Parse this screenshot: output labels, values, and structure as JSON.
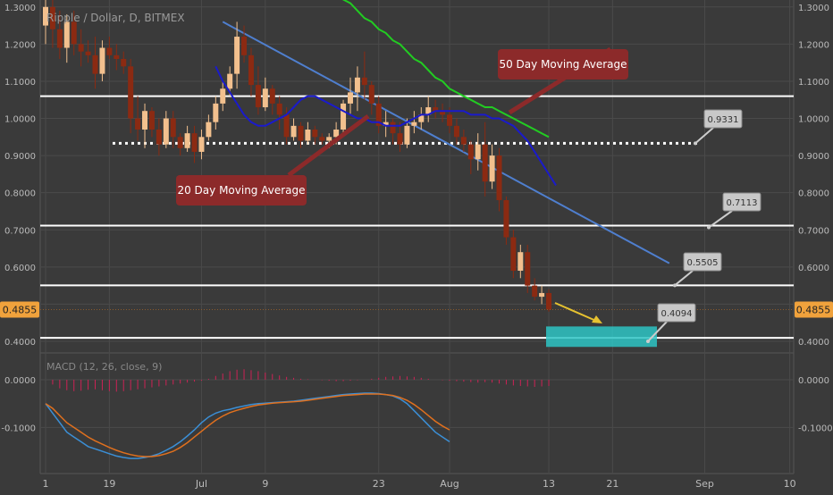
{
  "header": {
    "title": "Ripple / Dollar, D, BITMEX"
  },
  "colors": {
    "background": "#3a3a3a",
    "grid": "#4a4a4a",
    "candle_up": "#f2c08e",
    "candle_down": "#8b2a12",
    "ma20": "#1a1acc",
    "ma50": "#22cc22",
    "trendline": "#4f7fcf",
    "level_line": "#ffffff",
    "support_line": "#dddddd",
    "target_box": "#2ec4c4",
    "arrow": "#e6c230",
    "annotation_bg": "#8c2a2a",
    "callout_bg": "#c8c8c8",
    "price_tag_bg": "#f0a23c",
    "macd_line": "#3b8fd6",
    "signal_line": "#e0701e",
    "histogram": "#cc2255",
    "axis_text": "#bbbbbb"
  },
  "annotations": {
    "ma20_label": "20 Day Moving Average",
    "ma50_label": "50 Day Moving Average"
  },
  "price_tag": "0.4855",
  "chart_data": [
    {
      "type": "candlestick",
      "title": "Ripple / Dollar, D, BITMEX",
      "x_tick_labels": [
        "1",
        "19",
        "Jul",
        "9",
        "23",
        "Aug",
        "13",
        "21",
        "Sep",
        "10"
      ],
      "y_tick_labels": [
        "0.4000",
        "0.5000",
        "0.6000",
        "0.7000",
        "0.8000",
        "0.9000",
        "1.0000",
        "1.1000",
        "1.2000",
        "1.3000"
      ],
      "ylim": [
        0.37,
        1.33
      ],
      "grid": true,
      "last_price": 0.4855,
      "horizontal_levels": [
        {
          "value": 1.06,
          "style": "solid"
        },
        {
          "value": 0.9331,
          "style": "dotted",
          "label": "0.9331"
        },
        {
          "value": 0.7113,
          "style": "solid",
          "label": "0.7113"
        },
        {
          "value": 0.5505,
          "style": "solid",
          "label": "0.5505"
        },
        {
          "value": 0.4094,
          "style": "solid",
          "label": "0.4094"
        }
      ],
      "target_zone": {
        "low": 0.385,
        "high": 0.44
      },
      "candles": [
        {
          "o": 1.25,
          "h": 1.33,
          "l": 1.2,
          "c": 1.3
        },
        {
          "o": 1.3,
          "h": 1.32,
          "l": 1.19,
          "c": 1.24
        },
        {
          "o": 1.24,
          "h": 1.29,
          "l": 1.16,
          "c": 1.19
        },
        {
          "o": 1.19,
          "h": 1.28,
          "l": 1.15,
          "c": 1.26
        },
        {
          "o": 1.26,
          "h": 1.29,
          "l": 1.17,
          "c": 1.2
        },
        {
          "o": 1.2,
          "h": 1.24,
          "l": 1.14,
          "c": 1.18
        },
        {
          "o": 1.18,
          "h": 1.21,
          "l": 1.15,
          "c": 1.17
        },
        {
          "o": 1.17,
          "h": 1.22,
          "l": 1.08,
          "c": 1.12
        },
        {
          "o": 1.12,
          "h": 1.21,
          "l": 1.1,
          "c": 1.19
        },
        {
          "o": 1.19,
          "h": 1.22,
          "l": 1.16,
          "c": 1.17
        },
        {
          "o": 1.17,
          "h": 1.2,
          "l": 1.13,
          "c": 1.16
        },
        {
          "o": 1.16,
          "h": 1.18,
          "l": 1.12,
          "c": 1.14
        },
        {
          "o": 1.14,
          "h": 1.16,
          "l": 0.96,
          "c": 1.0
        },
        {
          "o": 1.0,
          "h": 1.06,
          "l": 0.94,
          "c": 0.97
        },
        {
          "o": 0.97,
          "h": 1.04,
          "l": 0.92,
          "c": 1.02
        },
        {
          "o": 1.02,
          "h": 1.03,
          "l": 0.95,
          "c": 0.97
        },
        {
          "o": 0.97,
          "h": 1.0,
          "l": 0.9,
          "c": 0.93
        },
        {
          "o": 0.93,
          "h": 1.02,
          "l": 0.92,
          "c": 1.0
        },
        {
          "o": 1.0,
          "h": 1.02,
          "l": 0.92,
          "c": 0.95
        },
        {
          "o": 0.95,
          "h": 0.96,
          "l": 0.9,
          "c": 0.92
        },
        {
          "o": 0.92,
          "h": 0.98,
          "l": 0.91,
          "c": 0.96
        },
        {
          "o": 0.96,
          "h": 0.98,
          "l": 0.88,
          "c": 0.91
        },
        {
          "o": 0.91,
          "h": 0.97,
          "l": 0.89,
          "c": 0.95
        },
        {
          "o": 0.95,
          "h": 1.01,
          "l": 0.94,
          "c": 0.99
        },
        {
          "o": 0.99,
          "h": 1.06,
          "l": 0.97,
          "c": 1.04
        },
        {
          "o": 1.04,
          "h": 1.1,
          "l": 1.02,
          "c": 1.08
        },
        {
          "o": 1.08,
          "h": 1.14,
          "l": 1.06,
          "c": 1.12
        },
        {
          "o": 1.12,
          "h": 1.26,
          "l": 1.08,
          "c": 1.22
        },
        {
          "o": 1.22,
          "h": 1.25,
          "l": 1.15,
          "c": 1.17
        },
        {
          "o": 1.17,
          "h": 1.19,
          "l": 1.06,
          "c": 1.09
        },
        {
          "o": 1.09,
          "h": 1.14,
          "l": 1.01,
          "c": 1.03
        },
        {
          "o": 1.03,
          "h": 1.11,
          "l": 1.02,
          "c": 1.08
        },
        {
          "o": 1.08,
          "h": 1.09,
          "l": 1.01,
          "c": 1.04
        },
        {
          "o": 1.04,
          "h": 1.06,
          "l": 0.97,
          "c": 1.01
        },
        {
          "o": 1.01,
          "h": 1.03,
          "l": 0.93,
          "c": 0.95
        },
        {
          "o": 0.95,
          "h": 1.0,
          "l": 0.94,
          "c": 0.98
        },
        {
          "o": 0.98,
          "h": 0.99,
          "l": 0.92,
          "c": 0.94
        },
        {
          "o": 0.94,
          "h": 0.99,
          "l": 0.93,
          "c": 0.97
        },
        {
          "o": 0.97,
          "h": 0.98,
          "l": 0.93,
          "c": 0.95
        },
        {
          "o": 0.95,
          "h": 0.96,
          "l": 0.93,
          "c": 0.94
        },
        {
          "o": 0.94,
          "h": 0.96,
          "l": 0.92,
          "c": 0.95
        },
        {
          "o": 0.95,
          "h": 0.99,
          "l": 0.93,
          "c": 0.97
        },
        {
          "o": 0.97,
          "h": 1.05,
          "l": 0.96,
          "c": 1.04
        },
        {
          "o": 1.04,
          "h": 1.11,
          "l": 1.01,
          "c": 1.07
        },
        {
          "o": 1.07,
          "h": 1.14,
          "l": 1.02,
          "c": 1.11
        },
        {
          "o": 1.11,
          "h": 1.18,
          "l": 1.05,
          "c": 1.09
        },
        {
          "o": 1.09,
          "h": 1.1,
          "l": 1.01,
          "c": 1.04
        },
        {
          "o": 1.04,
          "h": 1.06,
          "l": 0.96,
          "c": 0.98
        },
        {
          "o": 0.98,
          "h": 1.02,
          "l": 0.95,
          "c": 0.99
        },
        {
          "o": 0.99,
          "h": 1.0,
          "l": 0.93,
          "c": 0.96
        },
        {
          "o": 0.96,
          "h": 0.99,
          "l": 0.91,
          "c": 0.93
        },
        {
          "o": 0.93,
          "h": 1.0,
          "l": 0.92,
          "c": 0.98
        },
        {
          "o": 0.98,
          "h": 1.02,
          "l": 0.96,
          "c": 0.99
        },
        {
          "o": 0.99,
          "h": 1.03,
          "l": 0.97,
          "c": 1.01
        },
        {
          "o": 1.01,
          "h": 1.06,
          "l": 0.99,
          "c": 1.03
        },
        {
          "o": 1.03,
          "h": 1.05,
          "l": 1.0,
          "c": 1.02
        },
        {
          "o": 1.02,
          "h": 1.04,
          "l": 0.99,
          "c": 1.01
        },
        {
          "o": 1.01,
          "h": 1.03,
          "l": 0.96,
          "c": 0.98
        },
        {
          "o": 0.98,
          "h": 1.0,
          "l": 0.93,
          "c": 0.95
        },
        {
          "o": 0.95,
          "h": 0.97,
          "l": 0.91,
          "c": 0.93
        },
        {
          "o": 0.93,
          "h": 0.94,
          "l": 0.85,
          "c": 0.89
        },
        {
          "o": 0.89,
          "h": 0.96,
          "l": 0.86,
          "c": 0.93
        },
        {
          "o": 0.93,
          "h": 0.99,
          "l": 0.79,
          "c": 0.83
        },
        {
          "o": 0.83,
          "h": 0.93,
          "l": 0.81,
          "c": 0.9
        },
        {
          "o": 0.9,
          "h": 0.92,
          "l": 0.75,
          "c": 0.78
        },
        {
          "o": 0.78,
          "h": 0.79,
          "l": 0.66,
          "c": 0.68
        },
        {
          "o": 0.68,
          "h": 0.7,
          "l": 0.57,
          "c": 0.59
        },
        {
          "o": 0.59,
          "h": 0.66,
          "l": 0.57,
          "c": 0.64
        },
        {
          "o": 0.64,
          "h": 0.66,
          "l": 0.53,
          "c": 0.55
        },
        {
          "o": 0.55,
          "h": 0.57,
          "l": 0.51,
          "c": 0.52
        },
        {
          "o": 0.52,
          "h": 0.55,
          "l": 0.5,
          "c": 0.53
        },
        {
          "o": 0.53,
          "h": 0.54,
          "l": 0.48,
          "c": 0.4855
        }
      ],
      "ma20": [
        1.14,
        1.1,
        1.07,
        1.04,
        1.01,
        0.99,
        0.98,
        0.98,
        0.99,
        1.0,
        1.01,
        1.03,
        1.05,
        1.06,
        1.06,
        1.05,
        1.04,
        1.03,
        1.02,
        1.01,
        1.0,
        1.0,
        0.99,
        0.99,
        0.98,
        0.98,
        0.98,
        0.99,
        1.0,
        1.01,
        1.01,
        1.02,
        1.02,
        1.02,
        1.02,
        1.02,
        1.01,
        1.01,
        1.01,
        1.0,
        1.0,
        0.99,
        0.98,
        0.96,
        0.94,
        0.91,
        0.88,
        0.85,
        0.82
      ],
      "ma50": [
        1.33,
        1.32,
        1.31,
        1.29,
        1.27,
        1.26,
        1.24,
        1.23,
        1.21,
        1.2,
        1.18,
        1.16,
        1.15,
        1.13,
        1.11,
        1.1,
        1.08,
        1.07,
        1.06,
        1.05,
        1.04,
        1.03,
        1.03,
        1.02,
        1.01,
        1.0,
        0.99,
        0.98,
        0.97,
        0.96,
        0.95
      ],
      "trendline": [
        {
          "i": 25,
          "v": 1.26
        },
        {
          "i": 88,
          "v": 0.61
        }
      ]
    },
    {
      "type": "bar+line",
      "title": "MACD (12, 26, close, 9)",
      "y_tick_labels": [
        "0.0000",
        "-0.1000"
      ],
      "ylim": [
        -0.195,
        0.045
      ],
      "histogram": [
        0.0,
        -0.01,
        -0.018,
        -0.022,
        -0.024,
        -0.023,
        -0.021,
        -0.02,
        -0.022,
        -0.024,
        -0.025,
        -0.024,
        -0.022,
        -0.02,
        -0.018,
        -0.016,
        -0.014,
        -0.012,
        -0.01,
        -0.008,
        -0.006,
        -0.004,
        -0.002,
        0.002,
        0.008,
        0.013,
        0.018,
        0.021,
        0.022,
        0.02,
        0.018,
        0.015,
        0.012,
        0.009,
        0.006,
        0.004,
        0.002,
        0.001,
        0.0,
        -0.001,
        -0.002,
        -0.003,
        -0.003,
        -0.002,
        -0.001,
        0.0,
        0.002,
        0.004,
        0.006,
        0.007,
        0.008,
        0.007,
        0.006,
        0.004,
        0.002,
        0.0,
        -0.001,
        -0.002,
        -0.003,
        -0.004,
        -0.005,
        -0.006,
        -0.005,
        -0.006,
        -0.008,
        -0.01,
        -0.012,
        -0.013,
        -0.014,
        -0.015,
        -0.014,
        -0.013
      ],
      "macd": [
        -0.05,
        -0.07,
        -0.09,
        -0.11,
        -0.12,
        -0.13,
        -0.14,
        -0.145,
        -0.15,
        -0.155,
        -0.16,
        -0.163,
        -0.165,
        -0.165,
        -0.163,
        -0.16,
        -0.155,
        -0.148,
        -0.14,
        -0.13,
        -0.118,
        -0.105,
        -0.09,
        -0.078,
        -0.07,
        -0.065,
        -0.062,
        -0.058,
        -0.055,
        -0.052,
        -0.05,
        -0.049,
        -0.048,
        -0.047,
        -0.046,
        -0.045,
        -0.043,
        -0.041,
        -0.039,
        -0.037,
        -0.035,
        -0.033,
        -0.031,
        -0.03,
        -0.029,
        -0.028,
        -0.028,
        -0.029,
        -0.031,
        -0.034,
        -0.04,
        -0.05,
        -0.065,
        -0.08,
        -0.095,
        -0.11,
        -0.12,
        -0.13
      ],
      "signal": [
        -0.05,
        -0.06,
        -0.075,
        -0.09,
        -0.1,
        -0.11,
        -0.12,
        -0.128,
        -0.135,
        -0.142,
        -0.148,
        -0.153,
        -0.157,
        -0.16,
        -0.161,
        -0.161,
        -0.159,
        -0.155,
        -0.15,
        -0.142,
        -0.132,
        -0.12,
        -0.108,
        -0.096,
        -0.085,
        -0.076,
        -0.069,
        -0.064,
        -0.06,
        -0.056,
        -0.053,
        -0.051,
        -0.049,
        -0.048,
        -0.047,
        -0.046,
        -0.045,
        -0.043,
        -0.041,
        -0.039,
        -0.037,
        -0.035,
        -0.033,
        -0.032,
        -0.031,
        -0.03,
        -0.03,
        -0.03,
        -0.031,
        -0.033,
        -0.037,
        -0.043,
        -0.052,
        -0.063,
        -0.075,
        -0.087,
        -0.097,
        -0.105
      ]
    }
  ]
}
